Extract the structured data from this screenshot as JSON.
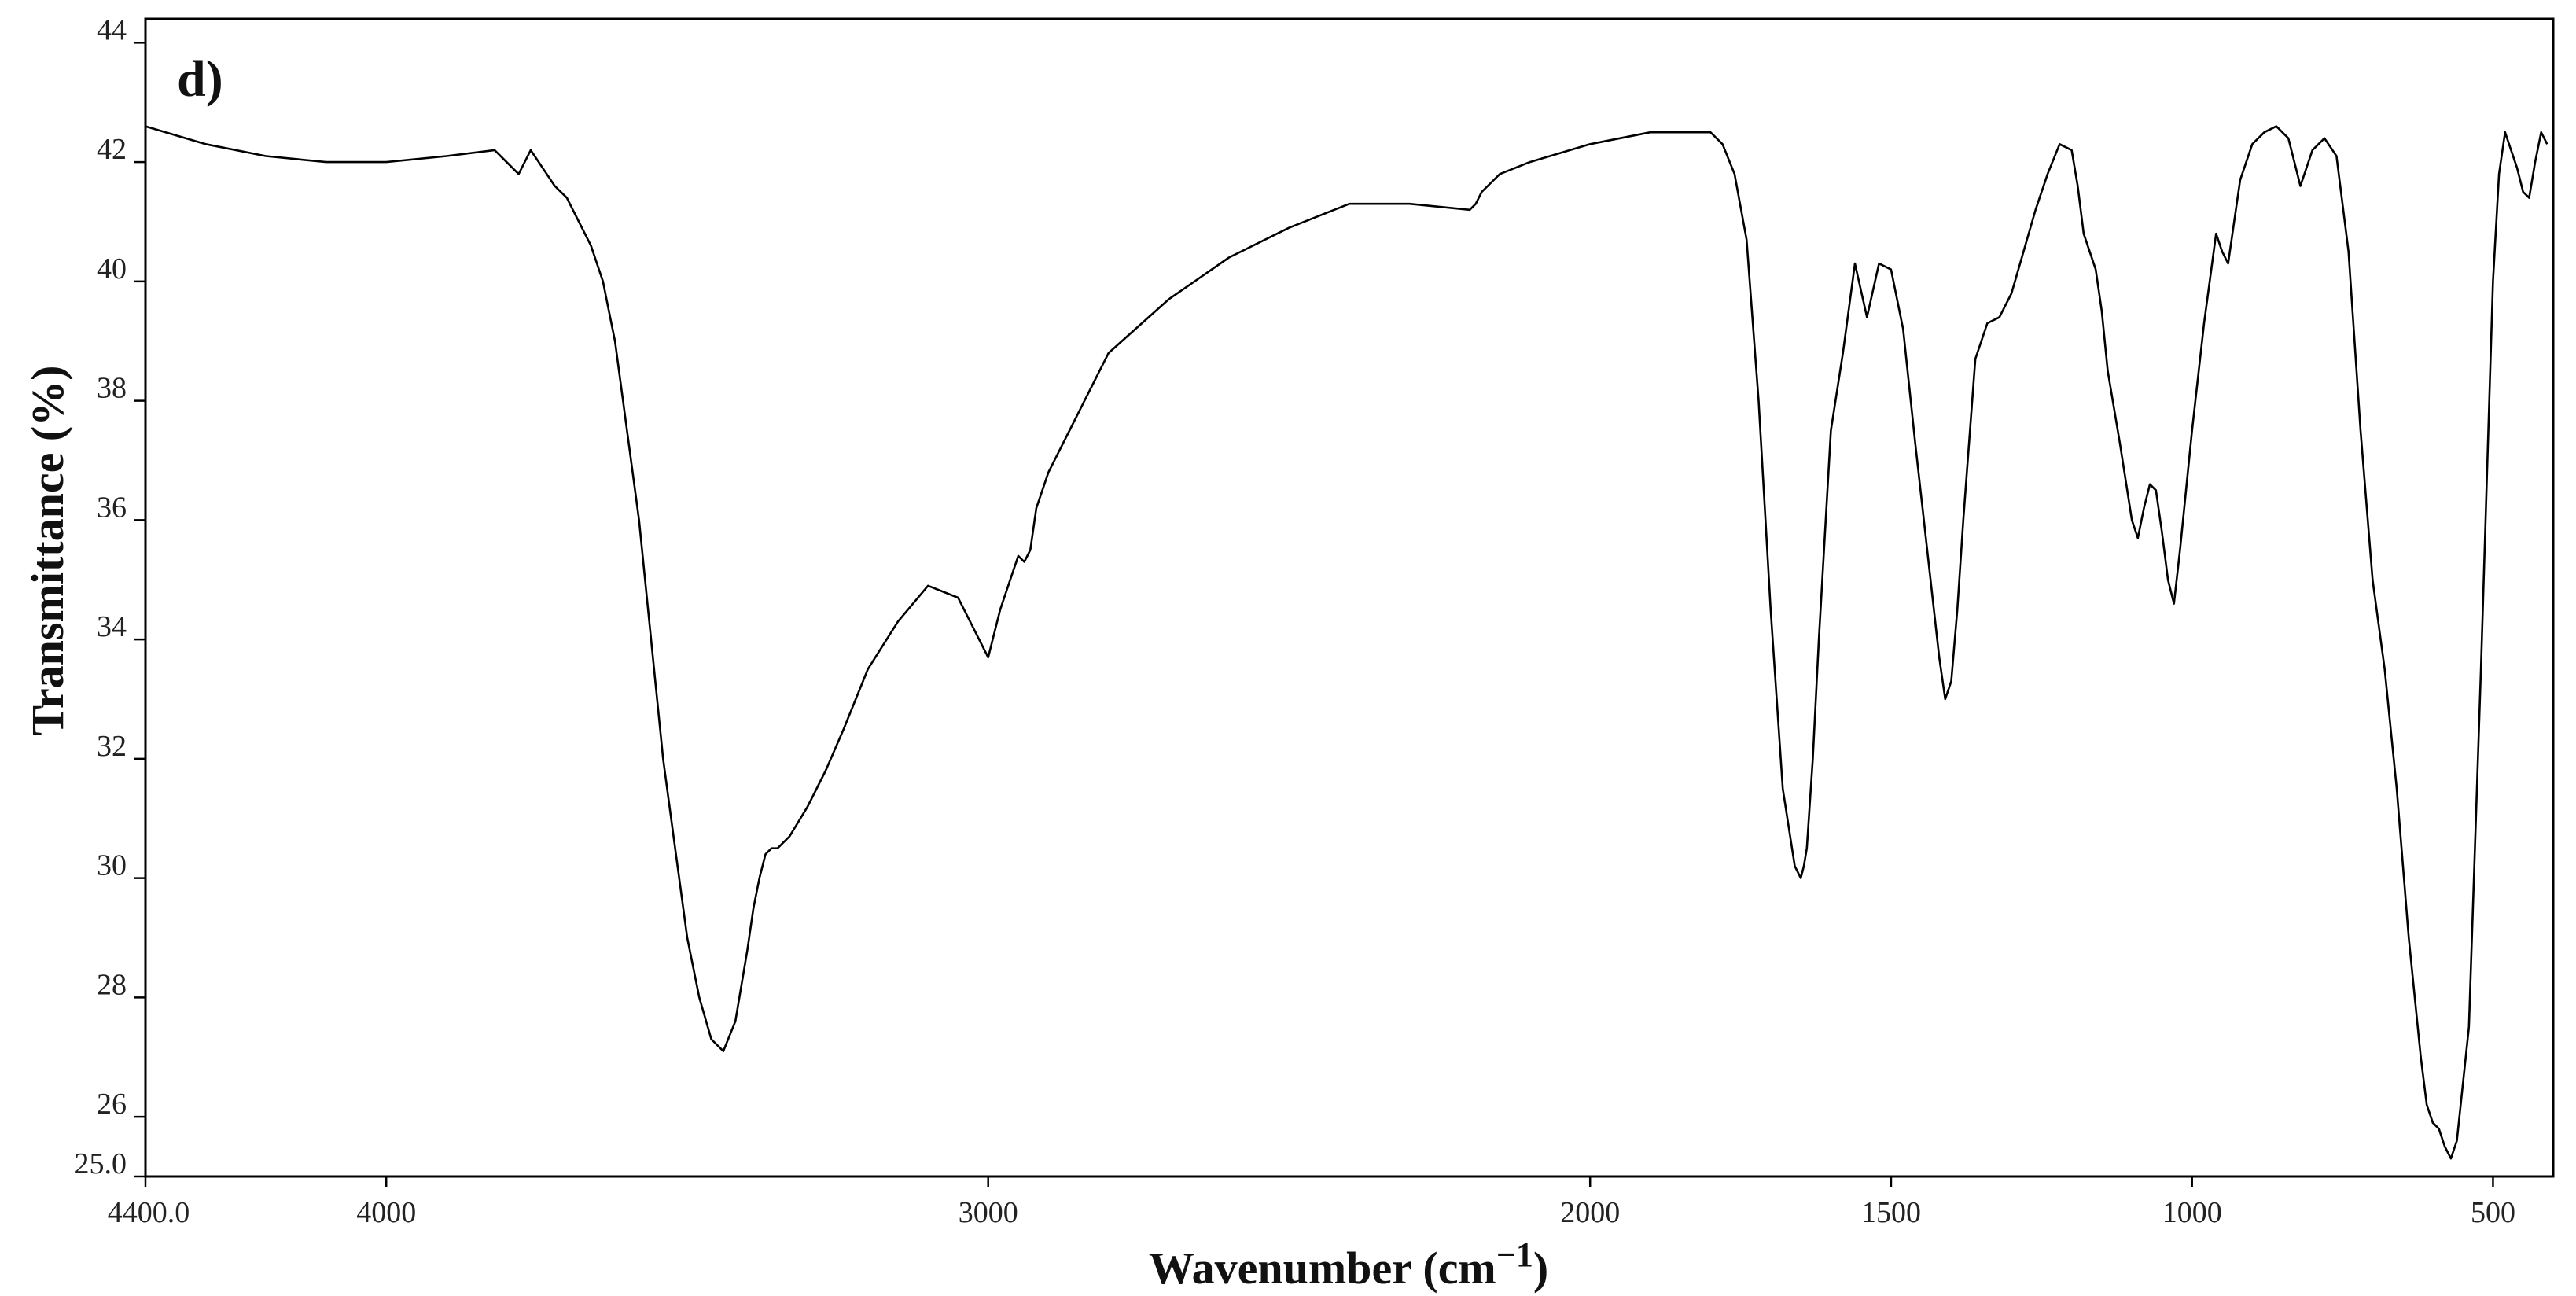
{
  "chart_data": {
    "type": "line",
    "panel_label": "d)",
    "xlabel": "Wavenumber (cm",
    "xlabel_superscript": "−1",
    "xlabel_suffix": ")",
    "ylabel": "Transmittance (%)",
    "xlim": [
      4400,
      400
    ],
    "ylim": [
      25,
      44.4
    ],
    "x_reversed": true,
    "grid": false,
    "legend": "none",
    "line_color": "#000000",
    "x_ticks": [
      {
        "value": 4400,
        "label": "4400.0"
      },
      {
        "value": 4000,
        "label": "4000"
      },
      {
        "value": 3000,
        "label": "3000"
      },
      {
        "value": 2000,
        "label": "2000"
      },
      {
        "value": 1500,
        "label": "1500"
      },
      {
        "value": 1000,
        "label": "1000"
      },
      {
        "value": 500,
        "label": "500"
      }
    ],
    "y_ticks": [
      {
        "value": 25,
        "label": "25.0"
      },
      {
        "value": 26,
        "label": "26"
      },
      {
        "value": 28,
        "label": "28"
      },
      {
        "value": 30,
        "label": "30"
      },
      {
        "value": 32,
        "label": "32"
      },
      {
        "value": 34,
        "label": "34"
      },
      {
        "value": 36,
        "label": "36"
      },
      {
        "value": 38,
        "label": "38"
      },
      {
        "value": 40,
        "label": "40"
      },
      {
        "value": 42,
        "label": "42"
      },
      {
        "value": 44,
        "label": "44"
      }
    ],
    "series": [
      {
        "x": [
          4400,
          4300,
          4200,
          4100,
          4000,
          3900,
          3820,
          3780,
          3760,
          3740,
          3720,
          3700,
          3690,
          3680,
          3660,
          3640,
          3630,
          3620,
          3600,
          3580,
          3560,
          3540,
          3520,
          3500,
          3480,
          3460,
          3440,
          3420,
          3400,
          3390,
          3380,
          3370,
          3360,
          3350,
          3330,
          3300,
          3270,
          3240,
          3200,
          3150,
          3100,
          3050,
          3000,
          2980,
          2960,
          2950,
          2940,
          2930,
          2920,
          2900,
          2880,
          2860,
          2840,
          2800,
          2700,
          2600,
          2500,
          2400,
          2300,
          2200,
          2190,
          2180,
          2150,
          2100,
          2000,
          1900,
          1850,
          1800,
          1780,
          1760,
          1740,
          1720,
          1700,
          1680,
          1660,
          1650,
          1645,
          1640,
          1630,
          1620,
          1600,
          1580,
          1560,
          1540,
          1520,
          1500,
          1480,
          1460,
          1440,
          1420,
          1410,
          1400,
          1390,
          1380,
          1360,
          1340,
          1320,
          1300,
          1280,
          1260,
          1240,
          1220,
          1200,
          1190,
          1180,
          1160,
          1150,
          1140,
          1120,
          1100,
          1090,
          1080,
          1070,
          1060,
          1050,
          1040,
          1030,
          1020,
          1000,
          980,
          960,
          950,
          940,
          920,
          900,
          880,
          860,
          840,
          820,
          800,
          780,
          760,
          740,
          720,
          700,
          680,
          660,
          640,
          620,
          610,
          600,
          590,
          580,
          570,
          560,
          540,
          520,
          500,
          490,
          480,
          470,
          460,
          450,
          440,
          430,
          420,
          410
        ],
        "y": [
          42.6,
          42.3,
          42.1,
          42.0,
          42.0,
          42.1,
          42.2,
          41.8,
          42.2,
          41.9,
          41.6,
          41.4,
          41.2,
          41.0,
          40.6,
          40.0,
          39.5,
          39.0,
          37.5,
          36.0,
          34.0,
          32.0,
          30.5,
          29.0,
          28.0,
          27.3,
          27.1,
          27.6,
          28.8,
          29.5,
          30.0,
          30.4,
          30.5,
          30.5,
          30.7,
          31.2,
          31.8,
          32.5,
          33.5,
          34.3,
          34.9,
          34.7,
          33.7,
          34.5,
          35.1,
          35.4,
          35.3,
          35.5,
          36.2,
          36.8,
          37.2,
          37.6,
          38.0,
          38.8,
          39.7,
          40.4,
          40.9,
          41.3,
          41.3,
          41.2,
          41.3,
          41.5,
          41.8,
          42.0,
          42.3,
          42.5,
          42.5,
          42.5,
          42.3,
          41.8,
          40.7,
          38.0,
          34.5,
          31.5,
          30.2,
          30.0,
          30.2,
          30.5,
          32.0,
          34.0,
          37.5,
          38.8,
          40.3,
          39.4,
          40.3,
          40.2,
          39.2,
          37.3,
          35.5,
          33.7,
          33.0,
          33.3,
          34.5,
          36.0,
          38.7,
          39.3,
          39.4,
          39.8,
          40.5,
          41.2,
          41.8,
          42.3,
          42.2,
          41.6,
          40.8,
          40.2,
          39.5,
          38.5,
          37.3,
          36.0,
          35.7,
          36.2,
          36.6,
          36.5,
          35.8,
          35.0,
          34.6,
          35.5,
          37.5,
          39.3,
          40.8,
          40.5,
          40.3,
          41.7,
          42.3,
          42.5,
          42.6,
          42.4,
          41.6,
          42.2,
          42.4,
          42.1,
          40.5,
          37.5,
          35.0,
          33.5,
          31.5,
          29.0,
          27.0,
          26.2,
          25.9,
          25.8,
          25.5,
          25.3,
          25.6,
          27.5,
          33.5,
          40.0,
          41.8,
          42.5,
          42.2,
          41.9,
          41.5,
          41.4,
          42.0,
          42.5,
          42.3
        ]
      }
    ]
  }
}
